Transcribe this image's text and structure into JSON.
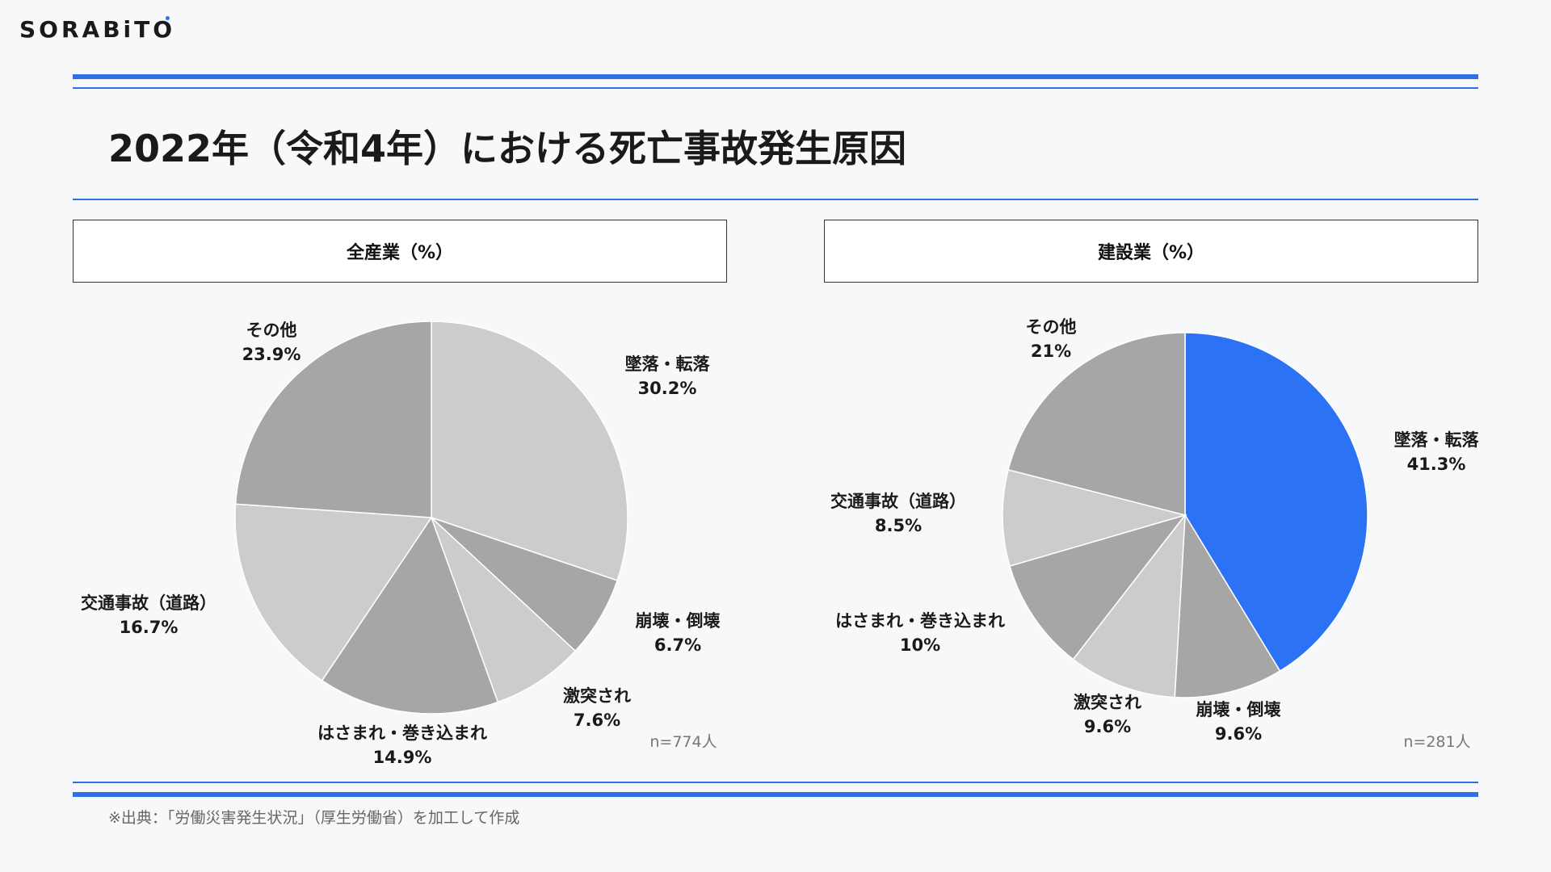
{
  "brand": {
    "name": "SORABiTO",
    "accent": "#2f6fe8"
  },
  "title": "2022年（令和4年）における死亡事故発生原因",
  "footer": "※出典：「労働災害発生状況」（厚生労働省）を加工して作成",
  "chart_data": [
    {
      "type": "pie",
      "title": "全産業（%）",
      "n_label": "n=774人",
      "series": [
        {
          "values": [
            30.2,
            6.7,
            7.6,
            14.9,
            16.7,
            23.9
          ]
        }
      ],
      "categories": [
        "墜落・転落",
        "崩壊・倒壊",
        "激突され",
        "はさまれ・巻き込まれ",
        "交通事故（道路）",
        "その他"
      ],
      "value_labels": [
        "30.2%",
        "6.7%",
        "7.6%",
        "14.9%",
        "16.7%",
        "23.9%"
      ],
      "colors": [
        "#cccccc",
        "#a6a6a6",
        "#cccccc",
        "#a6a6a6",
        "#cccccc",
        "#a6a6a6"
      ]
    },
    {
      "type": "pie",
      "title": "建設業（%）",
      "n_label": "n=281人",
      "series": [
        {
          "values": [
            41.3,
            9.6,
            9.6,
            10,
            8.5,
            21
          ]
        }
      ],
      "categories": [
        "墜落・転落",
        "崩壊・倒壊",
        "激突され",
        "はさまれ・巻き込まれ",
        "交通事故（道路）",
        "その他"
      ],
      "value_labels": [
        "41.3%",
        "9.6%",
        "9.6%",
        "10%",
        "8.5%",
        "21%"
      ],
      "colors": [
        "#2b72f5",
        "#a6a6a6",
        "#cccccc",
        "#a6a6a6",
        "#cccccc",
        "#a6a6a6"
      ]
    }
  ]
}
